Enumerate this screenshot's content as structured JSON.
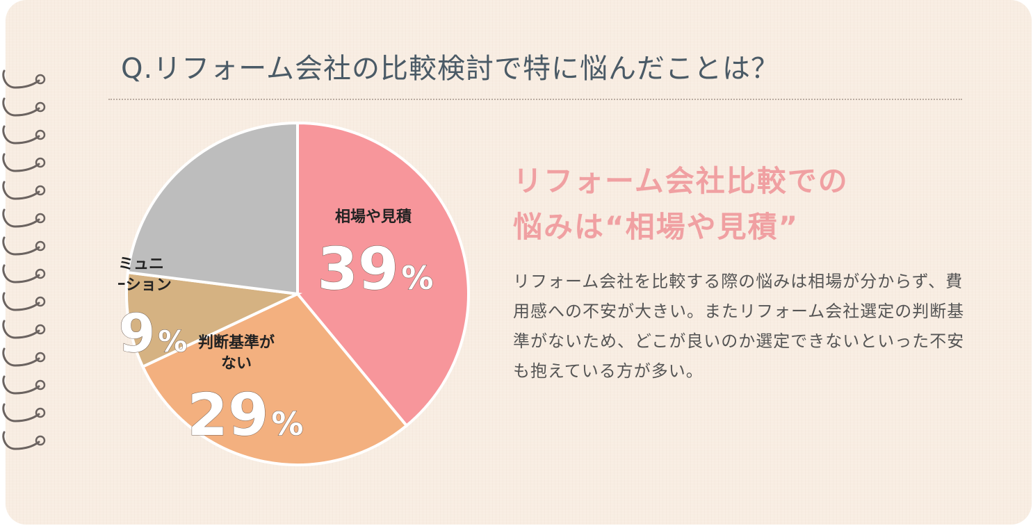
{
  "question": "Q.リフォーム会社の比較検討で特に悩んだことは？",
  "headline_lines": [
    "リフォーム会社比較での",
    "悩みは“相場や見積”"
  ],
  "body": "リフォーム会社を比較する際の悩みは相場が分からず、費用感への不安が大きい。またリフォーム会社選定の判断基準がないため、どこが良いのか選定できないといった不安も抱えている方が多い。",
  "chart_data": {
    "type": "pie",
    "start": "top",
    "direction": "clockwise",
    "slices": [
      {
        "label_lines": [
          "相場や見積"
        ],
        "value": 39,
        "display": "39",
        "unit": "%",
        "color": "#f7969b"
      },
      {
        "label_lines": [
          "判断基準が",
          "ない"
        ],
        "value": 29,
        "display": "29",
        "unit": "%",
        "color": "#f3b07f"
      },
      {
        "label_lines": [
          "コミュニ",
          "ケーション"
        ],
        "value": 9,
        "display": "9",
        "unit": "%",
        "color": "#d5b282"
      },
      {
        "label_lines": [],
        "value": 23,
        "display": "",
        "unit": "",
        "color": "#bdbdbd"
      }
    ]
  },
  "colors": {
    "background": "#f8ede2",
    "question_text": "#4a5a66",
    "headline": "#f0a0a2",
    "body_text": "#555555",
    "spiral": "#6b6360"
  }
}
